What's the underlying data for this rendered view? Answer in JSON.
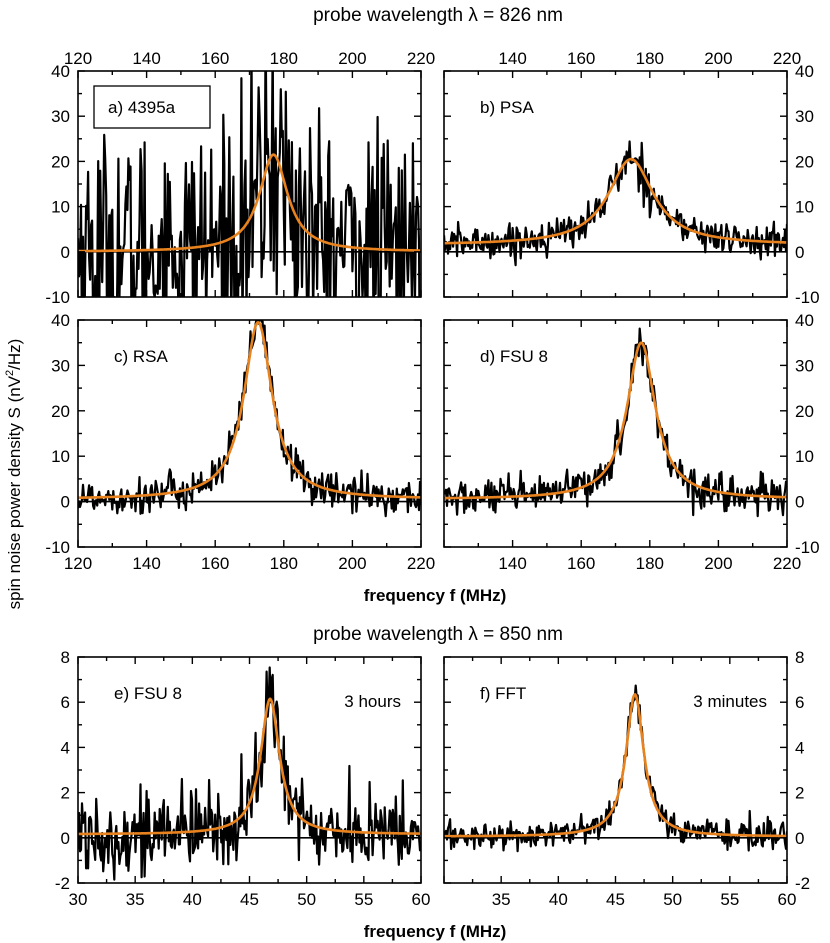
{
  "headers": {
    "top": "probe wavelength λ = 826 nm",
    "bottom": "probe wavelength λ = 850 nm"
  },
  "ylabel": {
    "main": "spin noise power density S  (nV",
    "sup": "2",
    "tail": "/Hz)"
  },
  "xlabel": "frequency f (MHz)",
  "colors": {
    "noise": "#000000",
    "fit": "#e8821e"
  },
  "chart_data": [
    {
      "id": "a",
      "type": "line",
      "label": "a) 4395a",
      "boxed": true,
      "annotation": "",
      "xlim": [
        120,
        220
      ],
      "ylim": [
        -10,
        40
      ],
      "xticks": [
        "120",
        "140",
        "160",
        "180",
        "200",
        "220"
      ],
      "yticks": [
        "-10",
        "0",
        "10",
        "20",
        "30",
        "40"
      ],
      "fit": {
        "center": 177,
        "amplitude": 21.5,
        "hwhm": 5,
        "offset": 0
      },
      "noise_sigma": 13
    },
    {
      "id": "b",
      "type": "line",
      "label": "b) PSA",
      "boxed": false,
      "annotation": "",
      "xlim": [
        120,
        220
      ],
      "ylim": [
        -10,
        40
      ],
      "xticks": [
        "",
        "140",
        "160",
        "180",
        "200",
        "220"
      ],
      "yticks": [
        "-10",
        "0",
        "10",
        "20",
        "30",
        "40"
      ],
      "fit": {
        "center": 174.5,
        "amplitude": 19,
        "hwhm": 8,
        "offset": 1.5
      },
      "noise_sigma": 1.8
    },
    {
      "id": "c",
      "type": "line",
      "label": "c) RSA",
      "boxed": false,
      "annotation": "",
      "xlim": [
        120,
        220
      ],
      "ylim": [
        -10,
        40
      ],
      "xticks": [
        "120",
        "140",
        "160",
        "180",
        "200",
        "220"
      ],
      "yticks": [
        "-10",
        "0",
        "10",
        "20",
        "30",
        "40"
      ],
      "fit": {
        "center": 172.5,
        "amplitude": 39,
        "hwhm": 5,
        "offset": 0.5
      },
      "noise_sigma": 2
    },
    {
      "id": "d",
      "type": "line",
      "label": "d) FSU 8",
      "boxed": false,
      "annotation": "",
      "xlim": [
        120,
        220
      ],
      "ylim": [
        -10,
        40
      ],
      "xticks": [
        "",
        "140",
        "160",
        "180",
        "200",
        "220"
      ],
      "yticks": [
        "-10",
        "0",
        "10",
        "20",
        "30",
        "40"
      ],
      "fit": {
        "center": 177.5,
        "amplitude": 34.5,
        "hwhm": 5,
        "offset": 0.5
      },
      "noise_sigma": 2
    },
    {
      "id": "e",
      "type": "line",
      "label": "e) FSU 8",
      "boxed": false,
      "annotation": "3 hours",
      "xlim": [
        30,
        60
      ],
      "ylim": [
        -2,
        8
      ],
      "xticks": [
        "30",
        "35",
        "40",
        "45",
        "50",
        "55",
        "60"
      ],
      "yticks": [
        "-2",
        "0",
        "2",
        "4",
        "6",
        "8"
      ],
      "fit": {
        "center": 46.8,
        "amplitude": 6,
        "hwhm": 1,
        "offset": 0.15
      },
      "noise_sigma": 0.9
    },
    {
      "id": "f",
      "type": "line",
      "label": "f) FFT",
      "boxed": false,
      "annotation": "3 minutes",
      "xlim": [
        30,
        60
      ],
      "ylim": [
        -2,
        8
      ],
      "xticks": [
        "",
        "35",
        "40",
        "45",
        "50",
        "55",
        "60"
      ],
      "yticks": [
        "-2",
        "0",
        "2",
        "4",
        "6",
        "8"
      ],
      "fit": {
        "center": 46.7,
        "amplitude": 6.3,
        "hwhm": 0.95,
        "offset": 0.05
      },
      "noise_sigma": 0.3
    }
  ]
}
